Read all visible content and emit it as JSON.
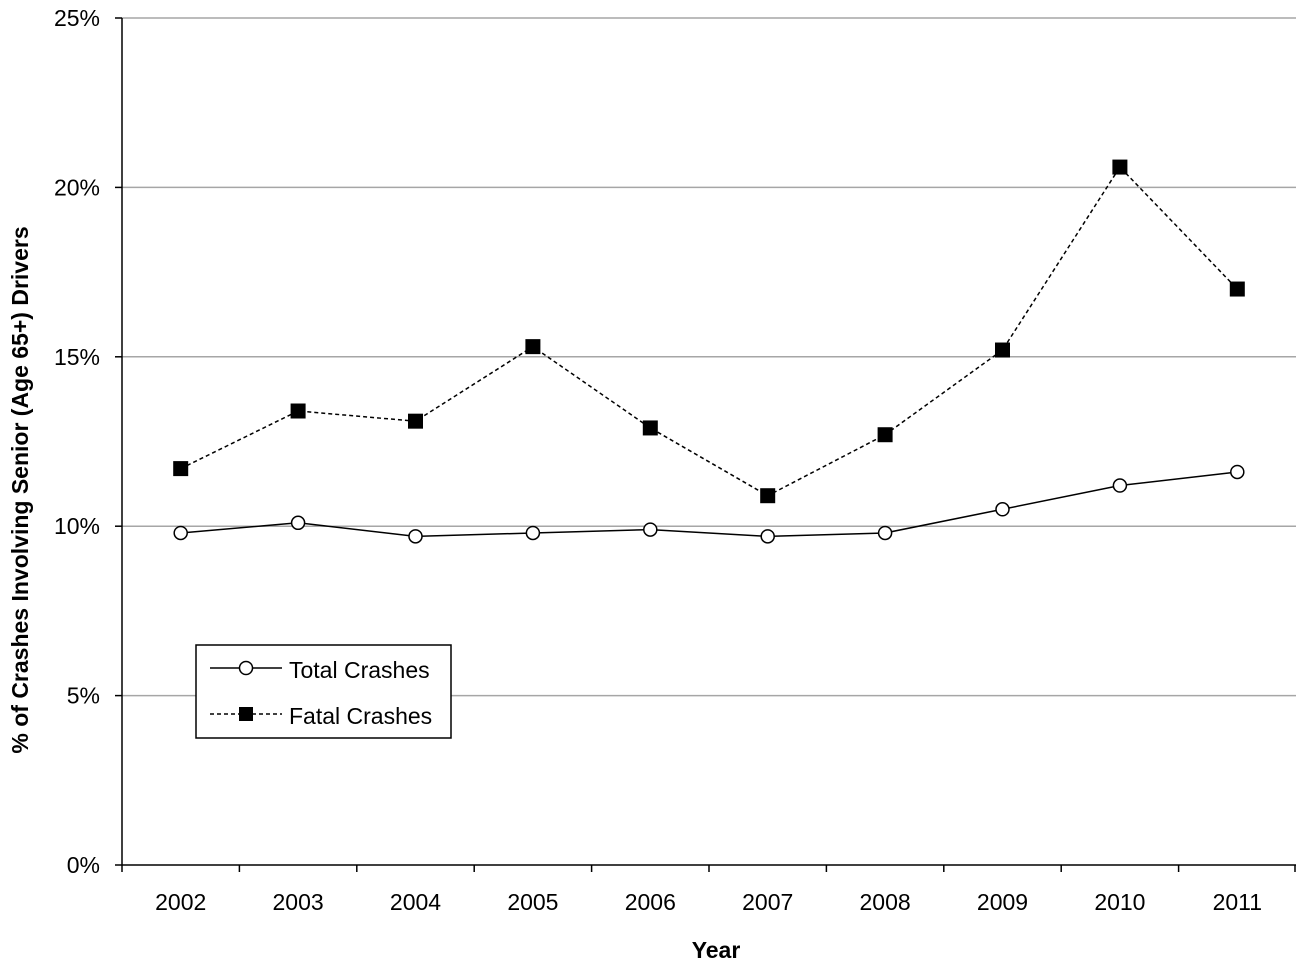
{
  "chart_data": {
    "type": "line",
    "categories": [
      "2002",
      "2003",
      "2004",
      "2005",
      "2006",
      "2007",
      "2008",
      "2009",
      "2010",
      "2011"
    ],
    "series": [
      {
        "name": "Total Crashes",
        "values": [
          9.8,
          10.1,
          9.7,
          9.8,
          9.9,
          9.7,
          9.8,
          10.5,
          11.2,
          11.6
        ],
        "color": "#000000",
        "line_style": "solid",
        "marker": "open-circle"
      },
      {
        "name": "Fatal Crashes",
        "values": [
          11.7,
          13.4,
          13.1,
          15.3,
          12.9,
          10.9,
          12.7,
          15.2,
          20.6,
          17.0
        ],
        "color": "#000000",
        "line_style": "dashed",
        "marker": "filled-square"
      }
    ],
    "xlabel": "Year",
    "ylabel": "% of Crashes Involving Senior (Age 65+) Drivers",
    "ylim": [
      0,
      25
    ],
    "yticks": [
      0,
      5,
      10,
      15,
      20,
      25
    ],
    "ytick_labels": [
      "0%",
      "5%",
      "10%",
      "15%",
      "20%",
      "25%"
    ],
    "grid": "horizontal",
    "grid_color": "#a6a6a6",
    "legend_position": "lower-left"
  }
}
